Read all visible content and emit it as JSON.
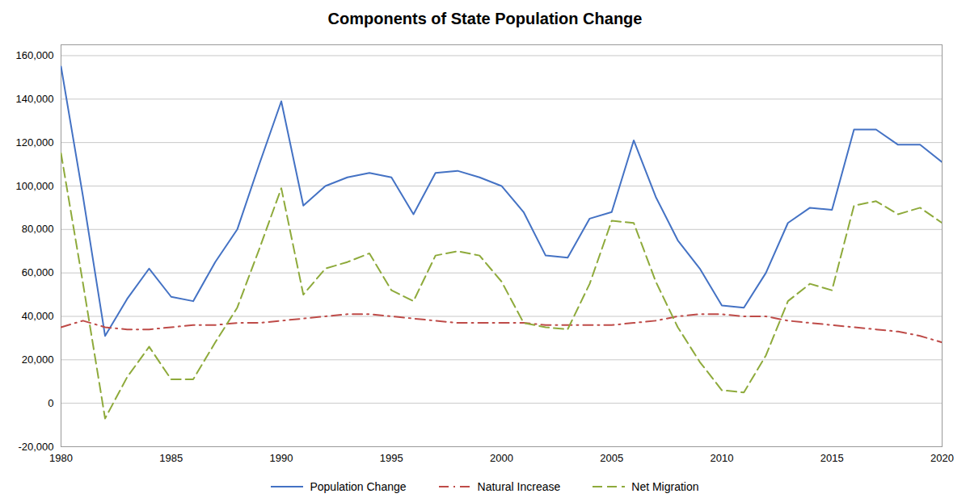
{
  "chart_data": {
    "type": "line",
    "title": "Components of State Population Change",
    "x": [
      1980,
      1981,
      1982,
      1983,
      1984,
      1985,
      1986,
      1987,
      1988,
      1989,
      1990,
      1991,
      1992,
      1993,
      1994,
      1995,
      1996,
      1997,
      1998,
      1999,
      2000,
      2001,
      2002,
      2003,
      2004,
      2005,
      2006,
      2007,
      2008,
      2009,
      2010,
      2011,
      2012,
      2013,
      2014,
      2015,
      2016,
      2017,
      2018,
      2019,
      2020
    ],
    "series": [
      {
        "name": "Population Change",
        "color": "#4472C4",
        "line_style": "solid",
        "values": [
          155000,
          95000,
          31000,
          48000,
          62000,
          49000,
          47000,
          65000,
          80000,
          110000,
          139000,
          91000,
          100000,
          104000,
          106000,
          104000,
          87000,
          106000,
          107000,
          104000,
          100000,
          88000,
          68000,
          67000,
          85000,
          88000,
          121000,
          95000,
          75000,
          62000,
          45000,
          44000,
          60000,
          83000,
          90000,
          89000,
          126000,
          126000,
          119000,
          119000,
          111000
        ]
      },
      {
        "name": "Natural Increase",
        "color": "#BE4B48",
        "line_style": "dashdot",
        "values": [
          35000,
          38000,
          35000,
          34000,
          34000,
          35000,
          36000,
          36000,
          37000,
          37000,
          38000,
          39000,
          40000,
          41000,
          41000,
          40000,
          39000,
          38000,
          37000,
          37000,
          37000,
          37000,
          36000,
          36000,
          36000,
          36000,
          37000,
          38000,
          40000,
          41000,
          41000,
          40000,
          40000,
          38000,
          37000,
          36000,
          35000,
          34000,
          33000,
          31000,
          28000
        ]
      },
      {
        "name": "Net Migration",
        "color": "#8EAA3B",
        "line_style": "dashed",
        "values": [
          115000,
          55000,
          -7000,
          12000,
          26000,
          11000,
          11000,
          28000,
          44000,
          71000,
          99000,
          50000,
          62000,
          65000,
          69000,
          52000,
          47000,
          68000,
          70000,
          68000,
          56000,
          37000,
          35000,
          34000,
          55000,
          84000,
          83000,
          56000,
          35000,
          19000,
          6000,
          5000,
          22000,
          47000,
          55000,
          52000,
          91000,
          93000,
          87000,
          90000,
          83000
        ]
      }
    ],
    "xlim": [
      1980,
      2020
    ],
    "xticks": [
      1980,
      1985,
      1990,
      1995,
      2000,
      2005,
      2010,
      2015,
      2020
    ],
    "ylim": [
      -20000,
      165000
    ],
    "yticks": [
      {
        "value": -20000,
        "label": "-20,000"
      },
      0,
      {
        "value": 20000,
        "label": "20,000"
      },
      {
        "value": 40000,
        "label": "40,000"
      },
      {
        "value": 60000,
        "label": "60,000"
      },
      {
        "value": 80000,
        "label": "80,000"
      },
      {
        "value": 100000,
        "label": "100,000"
      },
      {
        "value": 120000,
        "label": "120,000"
      },
      {
        "value": 140000,
        "label": "140,000"
      },
      {
        "value": 160000,
        "label": "160,000"
      }
    ],
    "grid": true,
    "legend": "bottom"
  }
}
